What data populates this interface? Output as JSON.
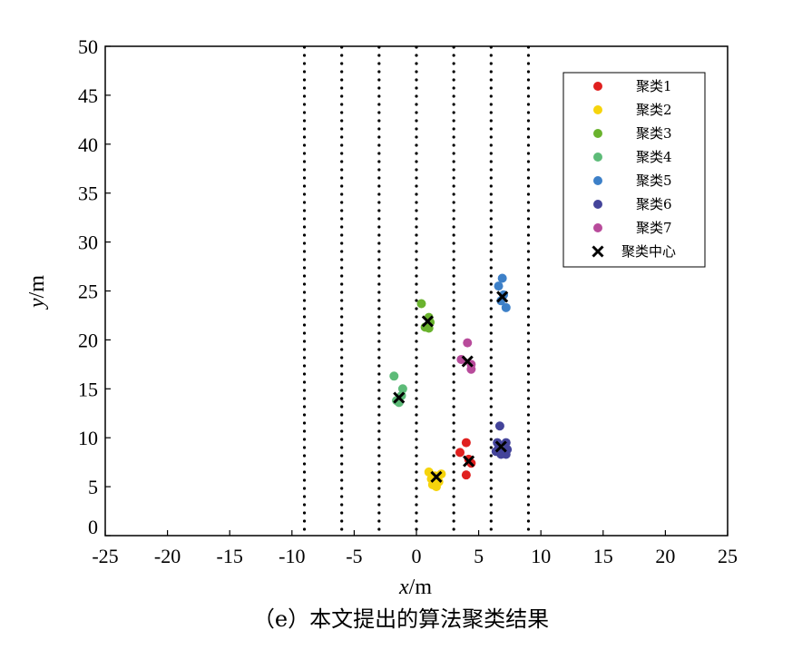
{
  "caption": "（e）本文提出的算法聚类结果",
  "chart_data": {
    "type": "scatter",
    "xlabel": {
      "var": "x",
      "unit": "/m"
    },
    "ylabel": {
      "var": "y",
      "unit": "/m"
    },
    "xlim": [
      -25,
      25
    ],
    "ylim": [
      0,
      50
    ],
    "xticks": [
      -25,
      -20,
      -15,
      -10,
      -5,
      0,
      5,
      10,
      15,
      20,
      25
    ],
    "yticks": [
      0,
      5,
      10,
      15,
      20,
      25,
      30,
      35,
      40,
      45,
      50
    ],
    "grid": false,
    "lane_lines_x": [
      -9,
      -6,
      -3,
      0,
      3,
      6,
      9
    ],
    "legend_position": "top-right",
    "series": [
      {
        "name": "聚类1",
        "color": "#e0201f",
        "marker": "dot",
        "points": [
          [
            4.0,
            9.5
          ],
          [
            3.5,
            8.5
          ],
          [
            4.2,
            7.8
          ],
          [
            4.4,
            7.4
          ],
          [
            4.0,
            6.2
          ]
        ]
      },
      {
        "name": "聚类2",
        "color": "#f6d40c",
        "marker": "dot",
        "points": [
          [
            1.0,
            6.5
          ],
          [
            1.5,
            6.1
          ],
          [
            2.0,
            6.3
          ],
          [
            1.2,
            5.8
          ],
          [
            1.3,
            5.2
          ],
          [
            1.8,
            5.5
          ],
          [
            1.6,
            5.0
          ]
        ]
      },
      {
        "name": "聚类3",
        "color": "#6ab32e",
        "marker": "dot",
        "points": [
          [
            0.4,
            23.7
          ],
          [
            1.0,
            22.3
          ],
          [
            1.1,
            21.8
          ],
          [
            0.7,
            21.3
          ],
          [
            1.0,
            21.2
          ]
        ]
      },
      {
        "name": "聚类4",
        "color": "#5dbb78",
        "marker": "dot",
        "points": [
          [
            -1.8,
            16.3
          ],
          [
            -1.1,
            15.0
          ],
          [
            -1.2,
            14.3
          ],
          [
            -1.6,
            13.8
          ],
          [
            -1.4,
            13.6
          ]
        ]
      },
      {
        "name": "聚类5",
        "color": "#3d80c8",
        "marker": "dot",
        "points": [
          [
            6.9,
            26.3
          ],
          [
            6.6,
            25.5
          ],
          [
            7.0,
            24.6
          ],
          [
            6.8,
            24.0
          ],
          [
            7.2,
            23.3
          ]
        ]
      },
      {
        "name": "聚类6",
        "color": "#44449a",
        "marker": "dot",
        "points": [
          [
            6.7,
            11.2
          ],
          [
            6.5,
            9.5
          ],
          [
            7.2,
            9.5
          ],
          [
            6.6,
            8.9
          ],
          [
            7.3,
            8.8
          ],
          [
            6.8,
            8.3
          ],
          [
            7.2,
            8.3
          ],
          [
            6.4,
            8.6
          ]
        ]
      },
      {
        "name": "聚类7",
        "color": "#b84b9b",
        "marker": "dot",
        "points": [
          [
            4.1,
            19.7
          ],
          [
            3.6,
            18.0
          ],
          [
            4.4,
            17.5
          ],
          [
            4.4,
            17.0
          ]
        ]
      },
      {
        "name": "聚类中心",
        "color": "#000000",
        "marker": "x",
        "points": [
          [
            4.2,
            7.6
          ],
          [
            1.6,
            6.0
          ],
          [
            0.9,
            21.9
          ],
          [
            -1.4,
            14.1
          ],
          [
            6.9,
            24.4
          ],
          [
            6.8,
            9.1
          ],
          [
            4.1,
            17.8
          ]
        ]
      }
    ]
  }
}
